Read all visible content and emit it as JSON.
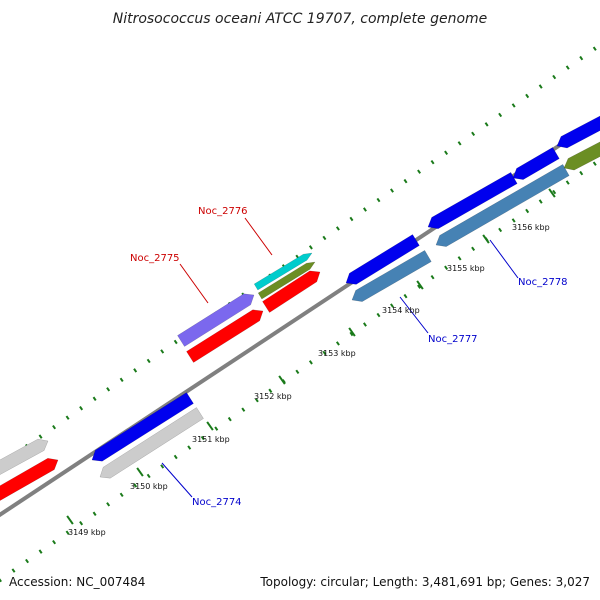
{
  "title": "Nitrosococcus oceani ATCC 19707, complete genome",
  "footer": {
    "accession": "Accession: NC_007484",
    "summary": "Topology: circular; Length: 3,481,691 bp; Genes: 3,027"
  },
  "colors": {
    "background": "#ffffff",
    "backbone": "#808080",
    "tick": "#1a7a1a",
    "forward_label": "#cc0000",
    "reverse_label": "#0000cc",
    "blue_gene": "#0000ee",
    "steelblue_gene": "#4682b4",
    "red_gene": "#ff0000",
    "gray_gene": "#cccccc",
    "purple_gene": "#7b68ee",
    "cyan_gene": "#00cccc",
    "olive_gene": "#6b8e23"
  },
  "ticks": [
    {
      "label": "3149 kbp"
    },
    {
      "label": "3150 kbp"
    },
    {
      "label": "3151 kbp"
    },
    {
      "label": "3152 kbp"
    },
    {
      "label": "3153 kbp"
    },
    {
      "label": "3154 kbp"
    },
    {
      "label": "3155 kbp"
    },
    {
      "label": "3156 kbp"
    }
  ],
  "gene_labels": [
    {
      "name": "Noc_2774",
      "strand": "reverse"
    },
    {
      "name": "Noc_2775",
      "strand": "forward"
    },
    {
      "name": "Noc_2776",
      "strand": "forward"
    },
    {
      "name": "Noc_2777",
      "strand": "reverse"
    },
    {
      "name": "Noc_2778",
      "strand": "reverse"
    }
  ]
}
